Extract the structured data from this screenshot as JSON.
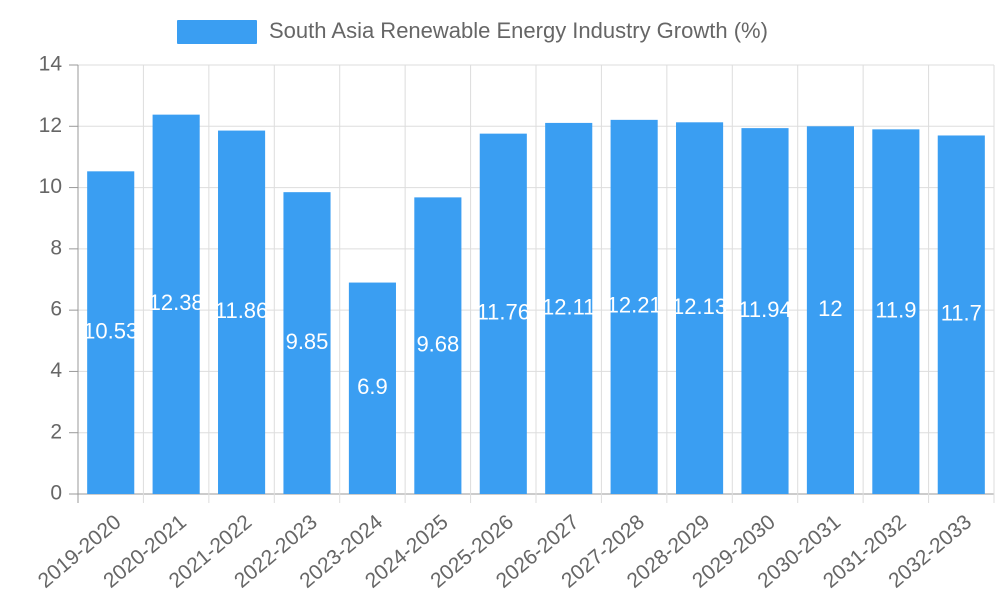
{
  "chart_data": {
    "type": "bar",
    "title": "",
    "xlabel": "",
    "ylabel": "",
    "legend": {
      "position": "top",
      "entries": [
        "South Asia Renewable Energy Industry Growth (%)"
      ]
    },
    "ylim": [
      0,
      14
    ],
    "yticks": [
      0,
      2,
      4,
      6,
      8,
      10,
      12,
      14
    ],
    "grid": true,
    "categories": [
      "2019-2020",
      "2020-2021",
      "2021-2022",
      "2022-2023",
      "2023-2024",
      "2024-2025",
      "2025-2026",
      "2026-2027",
      "2027-2028",
      "2028-2029",
      "2029-2030",
      "2030-2031",
      "2031-2032",
      "2032-2033"
    ],
    "series": [
      {
        "name": "South Asia Renewable Energy Industry Growth (%)",
        "color": "#3a9ef2",
        "values": [
          10.53,
          12.38,
          11.86,
          9.85,
          6.9,
          9.68,
          11.76,
          12.11,
          12.21,
          12.13,
          11.94,
          12,
          11.9,
          11.7
        ]
      }
    ]
  }
}
